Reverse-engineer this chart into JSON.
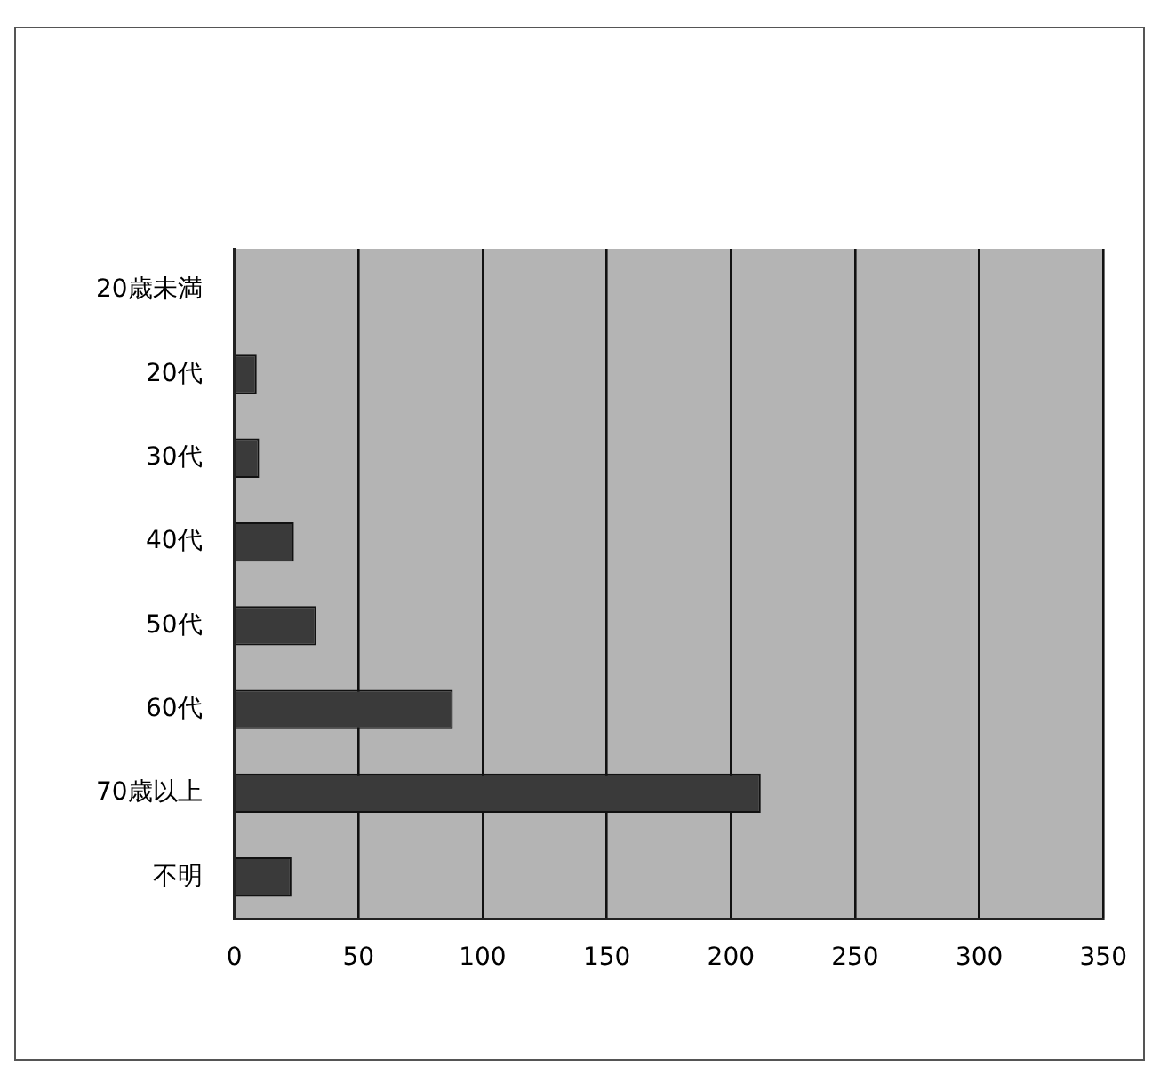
{
  "chart_data": {
    "type": "bar",
    "orientation": "horizontal",
    "categories": [
      "20歳未満",
      "20代",
      "30代",
      "40代",
      "50代",
      "60代",
      "70歳以上",
      "不明"
    ],
    "values": [
      0,
      9,
      10,
      24,
      33,
      88,
      212,
      23
    ],
    "color": "#3a3a3a",
    "xlim": [
      0,
      350
    ],
    "xticks": [
      0,
      50,
      100,
      150,
      200,
      250,
      300,
      350
    ],
    "grid": "x"
  }
}
